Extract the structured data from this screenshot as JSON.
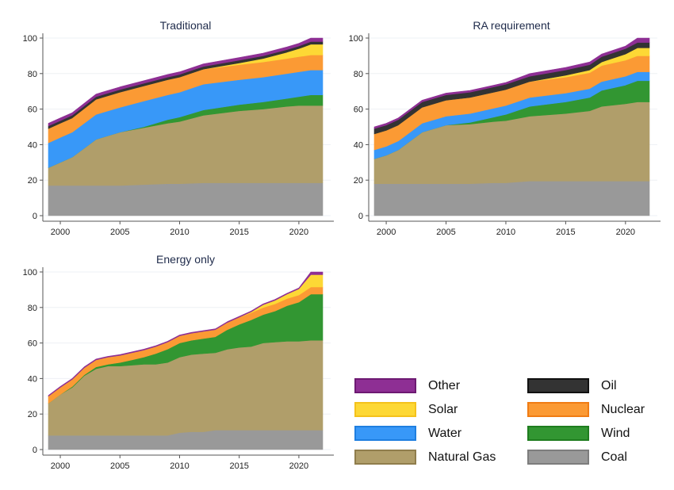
{
  "chart_data": [
    {
      "type": "area",
      "stacked": true,
      "title": "Traditional",
      "xlabel": "",
      "ylabel": "",
      "x": [
        1999,
        2000,
        2001,
        2003,
        2005,
        2007,
        2009,
        2010,
        2012,
        2015,
        2017,
        2019,
        2020,
        2021,
        2022
      ],
      "xticks": [
        2000,
        2005,
        2010,
        2015,
        2020
      ],
      "yticks": [
        0,
        20,
        40,
        60,
        80,
        100
      ],
      "ylim": [
        0,
        100
      ],
      "xlim": [
        1999,
        2022
      ],
      "grid": true,
      "series": [
        {
          "name": "Coal",
          "values": [
            17,
            17,
            17,
            17,
            17,
            17.5,
            18,
            18,
            18.5,
            18.5,
            18.5,
            18.5,
            18.5,
            18.5,
            18.5
          ]
        },
        {
          "name": "Natural Gas",
          "values": [
            10,
            13,
            16,
            26,
            30,
            32,
            34,
            35,
            38,
            40.5,
            41.5,
            43,
            43.5,
            43.5,
            43.5
          ]
        },
        {
          "name": "Wind",
          "values": [
            0,
            0,
            0,
            0,
            0,
            0.5,
            2,
            2.5,
            3,
            3.5,
            4,
            4.5,
            5,
            6,
            6
          ]
        },
        {
          "name": "Water",
          "values": [
            14,
            14,
            14,
            14,
            14,
            14.5,
            14,
            14,
            14.5,
            14,
            14,
            14,
            14,
            14,
            14
          ]
        },
        {
          "name": "Nuclear",
          "values": [
            8,
            8,
            8,
            8.5,
            8.5,
            8.5,
            8.5,
            8.5,
            8.5,
            8.5,
            8.5,
            8.5,
            8.5,
            8.5,
            8.5
          ]
        },
        {
          "name": "Solar",
          "values": [
            0,
            0,
            0,
            0,
            0,
            0,
            0,
            0,
            0,
            1,
            2,
            3.5,
            4.5,
            6,
            6
          ]
        },
        {
          "name": "Oil",
          "values": [
            1.5,
            1.5,
            1.5,
            1.5,
            1.5,
            1.5,
            1.5,
            1.5,
            1.5,
            1.5,
            1.5,
            1.5,
            1.5,
            1.5,
            1.5
          ]
        },
        {
          "name": "Other",
          "values": [
            1.5,
            1.5,
            1.5,
            1.5,
            1.5,
            1.5,
            1.5,
            1.5,
            1.5,
            1.5,
            1.5,
            1.5,
            1.5,
            2,
            2
          ]
        }
      ]
    },
    {
      "type": "area",
      "stacked": true,
      "title": "RA requirement",
      "xlabel": "",
      "ylabel": "",
      "x": [
        1999,
        2000,
        2001,
        2003,
        2005,
        2007,
        2009,
        2010,
        2012,
        2015,
        2017,
        2018,
        2020,
        2021,
        2022
      ],
      "xticks": [
        2000,
        2005,
        2010,
        2015,
        2020
      ],
      "yticks": [
        0,
        20,
        40,
        60,
        80,
        100
      ],
      "ylim": [
        0,
        100
      ],
      "xlim": [
        1999,
        2022
      ],
      "grid": true,
      "series": [
        {
          "name": "Coal",
          "values": [
            18,
            18,
            18,
            18,
            18,
            18,
            18.5,
            18.5,
            19.5,
            19.5,
            19.5,
            19.5,
            19.5,
            19.5,
            19.5
          ]
        },
        {
          "name": "Natural Gas",
          "values": [
            14,
            16,
            19,
            29,
            33,
            33.5,
            34.5,
            35,
            36.5,
            38,
            39.5,
            42,
            43.5,
            44.5,
            44.5
          ]
        },
        {
          "name": "Wind",
          "values": [
            0,
            0,
            0,
            0,
            0,
            1,
            2.5,
            3.5,
            5.5,
            6.5,
            7.5,
            9,
            10.5,
            12,
            12
          ]
        },
        {
          "name": "Water",
          "values": [
            5,
            5,
            5,
            5,
            5,
            5,
            5,
            5,
            5,
            5,
            5,
            5,
            5,
            5,
            5
          ]
        },
        {
          "name": "Nuclear",
          "values": [
            9,
            9,
            9,
            9,
            9,
            9,
            9,
            9,
            9,
            9,
            9,
            9,
            9,
            9,
            9
          ]
        },
        {
          "name": "Solar",
          "values": [
            0,
            0,
            0,
            0,
            0,
            0,
            0,
            0,
            0,
            1,
            1.5,
            2,
            3.5,
            4.5,
            4.5
          ]
        },
        {
          "name": "Oil",
          "values": [
            3,
            3,
            3,
            3,
            3,
            3,
            3,
            3,
            3,
            3,
            3,
            3,
            3,
            3,
            3
          ]
        },
        {
          "name": "Other",
          "values": [
            1,
            1,
            1,
            1,
            1,
            1,
            1,
            1,
            1.5,
            1.5,
            1.5,
            1.5,
            1.5,
            2.5,
            2.5
          ]
        }
      ]
    },
    {
      "type": "area",
      "stacked": true,
      "title": "Energy only",
      "xlabel": "",
      "ylabel": "",
      "x": [
        1999,
        2000,
        2001,
        2002,
        2003,
        2004,
        2005,
        2006,
        2007,
        2008,
        2009,
        2010,
        2011,
        2012,
        2013,
        2014,
        2015,
        2016,
        2017,
        2018,
        2019,
        2020,
        2021,
        2022
      ],
      "xticks": [
        2000,
        2005,
        2010,
        2015,
        2020
      ],
      "yticks": [
        0,
        20,
        40,
        60,
        80,
        100
      ],
      "ylim": [
        0,
        100
      ],
      "xlim": [
        1999,
        2022
      ],
      "grid": true,
      "series": [
        {
          "name": "Coal",
          "values": [
            8,
            8,
            8,
            8,
            8,
            8,
            8,
            8,
            8,
            8,
            8,
            9.5,
            10,
            10,
            11,
            11,
            11,
            11,
            11,
            11,
            11,
            11,
            11,
            11
          ]
        },
        {
          "name": "Natural Gas",
          "values": [
            18,
            23,
            27,
            33.5,
            37.5,
            39,
            39,
            39.5,
            40,
            40,
            41,
            42.5,
            43.5,
            44,
            43.5,
            45.5,
            46.5,
            47,
            49,
            49.5,
            50,
            50,
            50.5,
            50.5
          ]
        },
        {
          "name": "Wind",
          "values": [
            0,
            0,
            0.5,
            0.5,
            1,
            1,
            2,
            3,
            4,
            6,
            7.5,
            8,
            8,
            8.5,
            9,
            11,
            13,
            15,
            16,
            17.5,
            20,
            22,
            26,
            26
          ]
        },
        {
          "name": "Water",
          "values": [
            0,
            0,
            0,
            0,
            0,
            0,
            0,
            0,
            0,
            0,
            0,
            0,
            0,
            0,
            0,
            0,
            0,
            0,
            0,
            0,
            0,
            0,
            0,
            0
          ]
        },
        {
          "name": "Nuclear",
          "values": [
            4,
            4,
            4,
            4,
            4,
            4,
            4,
            4,
            4,
            4,
            4,
            4,
            4,
            4,
            4,
            4,
            4,
            4,
            4,
            4,
            4,
            4,
            4,
            4
          ]
        },
        {
          "name": "Solar",
          "values": [
            0,
            0,
            0,
            0,
            0,
            0,
            0,
            0,
            0,
            0,
            0,
            0,
            0,
            0,
            0,
            0,
            0,
            0.5,
            1.5,
            2,
            2.5,
            3.5,
            7,
            7
          ]
        },
        {
          "name": "Oil",
          "values": [
            0,
            0,
            0,
            0,
            0,
            0,
            0,
            0,
            0,
            0,
            0,
            0,
            0,
            0,
            0,
            0,
            0,
            0,
            0,
            0,
            0,
            0,
            0,
            0
          ]
        },
        {
          "name": "Other",
          "values": [
            0.5,
            0.5,
            0.5,
            0.5,
            0.5,
            0.5,
            0.5,
            0.5,
            0.5,
            0.5,
            0.5,
            0.5,
            0.5,
            0.5,
            0.5,
            0.5,
            0.5,
            0.5,
            0.5,
            0.5,
            0.5,
            0.5,
            1.5,
            1.5
          ]
        }
      ]
    }
  ],
  "legend": {
    "placement": "bottom-right",
    "items": [
      {
        "name": "Other",
        "color": "#8e2f94",
        "border": "#6d1a72"
      },
      {
        "name": "Oil",
        "color": "#333333",
        "border": "#111111"
      },
      {
        "name": "Solar",
        "color": "#fdd835",
        "border": "#f4c21c"
      },
      {
        "name": "Nuclear",
        "color": "#fb9a34",
        "border": "#f07c14"
      },
      {
        "name": "Water",
        "color": "#3898f8",
        "border": "#1f7fe0"
      },
      {
        "name": "Wind",
        "color": "#329632",
        "border": "#1f7d1f"
      },
      {
        "name": "Natural Gas",
        "color": "#b09e6a",
        "border": "#8f7d4c"
      },
      {
        "name": "Coal",
        "color": "#999999",
        "border": "#7d7d7d"
      }
    ]
  },
  "colors": {
    "Coal": "#999999",
    "Natural Gas": "#b09e6a",
    "Wind": "#329632",
    "Water": "#3898f8",
    "Nuclear": "#fb9a34",
    "Solar": "#fdd835",
    "Oil": "#333333",
    "Other": "#8e2f94"
  }
}
